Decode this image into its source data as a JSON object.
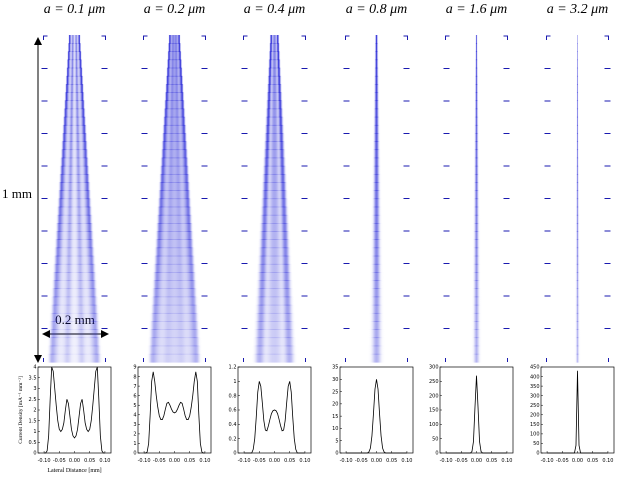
{
  "annotations": {
    "height": "1 mm",
    "width": "0.2 mm"
  },
  "chart_data": [
    {
      "type": "line",
      "title": "a = 0.1 μm",
      "y_label": "Current Density [mA⁻¹ mm⁻²]",
      "x_label": "Lateral Distance [mm]",
      "color": "#000000",
      "beam_color": "#2323d6",
      "x": [
        -0.1,
        -0.095,
        -0.09,
        -0.085,
        -0.08,
        -0.075,
        -0.07,
        -0.065,
        -0.06,
        -0.055,
        -0.05,
        -0.045,
        -0.04,
        -0.035,
        -0.03,
        -0.025,
        -0.02,
        -0.015,
        -0.01,
        -0.005,
        0,
        0.005,
        0.01,
        0.015,
        0.02,
        0.025,
        0.03,
        0.035,
        0.04,
        0.045,
        0.05,
        0.055,
        0.06,
        0.065,
        0.07,
        0.075,
        0.08,
        0.085,
        0.09,
        0.095,
        0.1
      ],
      "values": [
        0,
        0,
        0.1,
        0.8,
        2.5,
        4.0,
        3.8,
        3.0,
        2.2,
        1.5,
        1.1,
        1.0,
        1.1,
        1.4,
        2.0,
        2.5,
        2.3,
        1.7,
        1.1,
        0.8,
        0.7,
        0.8,
        1.1,
        1.7,
        2.3,
        2.5,
        2.0,
        1.4,
        1.1,
        1.0,
        1.1,
        1.5,
        2.2,
        3.0,
        3.8,
        4.0,
        2.5,
        0.8,
        0.1,
        0,
        0
      ],
      "xlim": [
        -0.12,
        0.12
      ],
      "xticks": [
        {
          "value": -0.1,
          "label": "-0.10"
        },
        {
          "value": -0.05,
          "label": "-0.05"
        },
        {
          "value": 0,
          "label": "0.00"
        },
        {
          "value": 0.05,
          "label": "0.05"
        },
        {
          "value": 0.1,
          "label": "0.10"
        }
      ],
      "ylim": [
        0,
        4
      ],
      "yticks": [
        0,
        0.5,
        1,
        1.5,
        2,
        2.5,
        3,
        3.5,
        4
      ]
    },
    {
      "type": "line",
      "title": "a = 0.2 μm",
      "color": "#000000",
      "beam_color": "#2323d6",
      "x": [
        -0.1,
        -0.095,
        -0.09,
        -0.085,
        -0.08,
        -0.075,
        -0.07,
        -0.065,
        -0.06,
        -0.055,
        -0.05,
        -0.045,
        -0.04,
        -0.035,
        -0.03,
        -0.025,
        -0.02,
        -0.015,
        -0.01,
        -0.005,
        0,
        0.005,
        0.01,
        0.015,
        0.02,
        0.025,
        0.03,
        0.035,
        0.04,
        0.045,
        0.05,
        0.055,
        0.06,
        0.065,
        0.07,
        0.075,
        0.08,
        0.085,
        0.09,
        0.095,
        0.1
      ],
      "values": [
        0,
        0,
        0.1,
        1.0,
        4.0,
        7.5,
        8.5,
        7.5,
        6.0,
        4.8,
        3.9,
        3.5,
        3.5,
        3.9,
        4.6,
        5.2,
        5.3,
        5.0,
        4.6,
        4.3,
        4.2,
        4.3,
        4.6,
        5.0,
        5.3,
        5.2,
        4.6,
        3.9,
        3.5,
        3.5,
        3.9,
        4.8,
        6.0,
        7.5,
        8.5,
        7.5,
        4.0,
        1.0,
        0.1,
        0,
        0
      ],
      "xlim": [
        -0.12,
        0.12
      ],
      "xticks": [
        {
          "value": -0.1,
          "label": "-0.10"
        },
        {
          "value": -0.05,
          "label": "-0.05"
        },
        {
          "value": 0,
          "label": "0.00"
        },
        {
          "value": 0.05,
          "label": "0.05"
        },
        {
          "value": 0.1,
          "label": "0.10"
        }
      ],
      "ylim": [
        0,
        9
      ],
      "yticks": [
        0,
        1,
        2,
        3,
        4,
        5,
        6,
        7,
        8,
        9
      ]
    },
    {
      "type": "line",
      "title": "a = 0.4 μm",
      "color": "#000000",
      "beam_color": "#2323d6",
      "x": [
        -0.1,
        -0.095,
        -0.09,
        -0.085,
        -0.08,
        -0.075,
        -0.07,
        -0.065,
        -0.06,
        -0.055,
        -0.05,
        -0.045,
        -0.04,
        -0.035,
        -0.03,
        -0.025,
        -0.02,
        -0.015,
        -0.01,
        -0.005,
        0,
        0.005,
        0.01,
        0.015,
        0.02,
        0.025,
        0.03,
        0.035,
        0.04,
        0.045,
        0.05,
        0.055,
        0.06,
        0.065,
        0.07,
        0.075,
        0.08,
        0.085,
        0.09,
        0.095,
        0.1
      ],
      "values": [
        0,
        0,
        0,
        0,
        0,
        0,
        0.05,
        0.2,
        0.5,
        0.85,
        1.0,
        0.93,
        0.7,
        0.45,
        0.32,
        0.31,
        0.38,
        0.47,
        0.55,
        0.59,
        0.6,
        0.59,
        0.55,
        0.47,
        0.38,
        0.31,
        0.32,
        0.45,
        0.7,
        0.93,
        1.0,
        0.85,
        0.5,
        0.2,
        0.05,
        0,
        0,
        0,
        0,
        0,
        0
      ],
      "xlim": [
        -0.12,
        0.12
      ],
      "xticks": [
        {
          "value": -0.1,
          "label": "-0.10"
        },
        {
          "value": -0.05,
          "label": "-0.05"
        },
        {
          "value": 0,
          "label": "0.00"
        },
        {
          "value": 0.05,
          "label": "0.05"
        },
        {
          "value": 0.1,
          "label": "0.10"
        }
      ],
      "ylim": [
        0,
        1.2
      ],
      "yticks": [
        0,
        0.2,
        0.4,
        0.6,
        0.8,
        1,
        1.2
      ]
    },
    {
      "type": "line",
      "title": "a = 0.8 μm",
      "color": "#000000",
      "beam_color": "#2323d6",
      "x": [
        -0.1,
        -0.095,
        -0.09,
        -0.085,
        -0.08,
        -0.075,
        -0.07,
        -0.065,
        -0.06,
        -0.055,
        -0.05,
        -0.045,
        -0.04,
        -0.035,
        -0.03,
        -0.025,
        -0.02,
        -0.015,
        -0.01,
        -0.005,
        0,
        0.005,
        0.01,
        0.015,
        0.02,
        0.025,
        0.03,
        0.035,
        0.04,
        0.045,
        0.05,
        0.055,
        0.06,
        0.065,
        0.07,
        0.075,
        0.08,
        0.085,
        0.09,
        0.095,
        0.1
      ],
      "values": [
        0,
        0,
        0,
        0,
        0,
        0,
        0,
        0,
        0,
        0,
        0,
        0,
        0,
        0,
        0,
        0.4,
        2,
        7,
        16,
        26,
        30,
        26,
        16,
        7,
        2,
        0.4,
        0,
        0,
        0,
        0,
        0,
        0,
        0,
        0,
        0,
        0,
        0,
        0,
        0,
        0,
        0
      ],
      "xlim": [
        -0.12,
        0.12
      ],
      "xticks": [
        {
          "value": -0.1,
          "label": "-0.10"
        },
        {
          "value": -0.05,
          "label": "-0.05"
        },
        {
          "value": 0,
          "label": "0.00"
        },
        {
          "value": 0.05,
          "label": "0.05"
        },
        {
          "value": 0.1,
          "label": "0.10"
        }
      ],
      "ylim": [
        0,
        35
      ],
      "yticks": [
        0,
        5,
        10,
        15,
        20,
        25,
        30,
        35
      ]
    },
    {
      "type": "line",
      "title": "a = 1.6 μm",
      "color": "#000000",
      "beam_color": "#2323d6",
      "x": [
        -0.1,
        -0.095,
        -0.09,
        -0.085,
        -0.08,
        -0.075,
        -0.07,
        -0.065,
        -0.06,
        -0.055,
        -0.05,
        -0.045,
        -0.04,
        -0.035,
        -0.03,
        -0.025,
        -0.02,
        -0.015,
        -0.01,
        -0.005,
        0,
        0.005,
        0.01,
        0.015,
        0.02,
        0.025,
        0.03,
        0.035,
        0.04,
        0.045,
        0.05,
        0.055,
        0.06,
        0.065,
        0.07,
        0.075,
        0.08,
        0.085,
        0.09,
        0.095,
        0.1
      ],
      "values": [
        0,
        0,
        0,
        0,
        0,
        0,
        0,
        0,
        0,
        0,
        0,
        0,
        0,
        0,
        0,
        0,
        0,
        5,
        40,
        160,
        270,
        160,
        40,
        5,
        0,
        0,
        0,
        0,
        0,
        0,
        0,
        0,
        0,
        0,
        0,
        0,
        0,
        0,
        0,
        0,
        0
      ],
      "xlim": [
        -0.12,
        0.12
      ],
      "xticks": [
        {
          "value": -0.1,
          "label": "-0.10"
        },
        {
          "value": -0.05,
          "label": "-0.05"
        },
        {
          "value": 0,
          "label": "0.00"
        },
        {
          "value": 0.05,
          "label": "0.05"
        },
        {
          "value": 0.1,
          "label": "0.10"
        }
      ],
      "ylim": [
        0,
        300
      ],
      "yticks": [
        0,
        50,
        100,
        150,
        200,
        250,
        300
      ]
    },
    {
      "type": "line",
      "title": "a = 3.2 μm",
      "color": "#000000",
      "beam_color": "#2323d6",
      "x": [
        -0.1,
        -0.095,
        -0.09,
        -0.085,
        -0.08,
        -0.075,
        -0.07,
        -0.065,
        -0.06,
        -0.055,
        -0.05,
        -0.045,
        -0.04,
        -0.035,
        -0.03,
        -0.025,
        -0.02,
        -0.015,
        -0.01,
        -0.005,
        0,
        0.005,
        0.01,
        0.015,
        0.02,
        0.025,
        0.03,
        0.035,
        0.04,
        0.045,
        0.05,
        0.055,
        0.06,
        0.065,
        0.07,
        0.075,
        0.08,
        0.085,
        0.09,
        0.095,
        0.1
      ],
      "values": [
        0,
        0,
        0,
        0,
        0,
        0,
        0,
        0,
        0,
        0,
        0,
        0,
        0,
        0,
        0,
        0,
        0,
        0,
        0,
        40,
        430,
        40,
        0,
        0,
        0,
        0,
        0,
        0,
        0,
        0,
        0,
        0,
        0,
        0,
        0,
        0,
        0,
        0,
        0,
        0,
        0
      ],
      "xlim": [
        -0.12,
        0.12
      ],
      "xticks": [
        {
          "value": -0.1,
          "label": "-0.10"
        },
        {
          "value": -0.05,
          "label": "-0.05"
        },
        {
          "value": 0,
          "label": "0.00"
        },
        {
          "value": 0.05,
          "label": "0.05"
        },
        {
          "value": 0.1,
          "label": "0.10"
        }
      ],
      "ylim": [
        0,
        450
      ],
      "yticks": [
        0,
        50,
        100,
        150,
        200,
        250,
        300,
        350,
        400,
        450
      ]
    }
  ]
}
